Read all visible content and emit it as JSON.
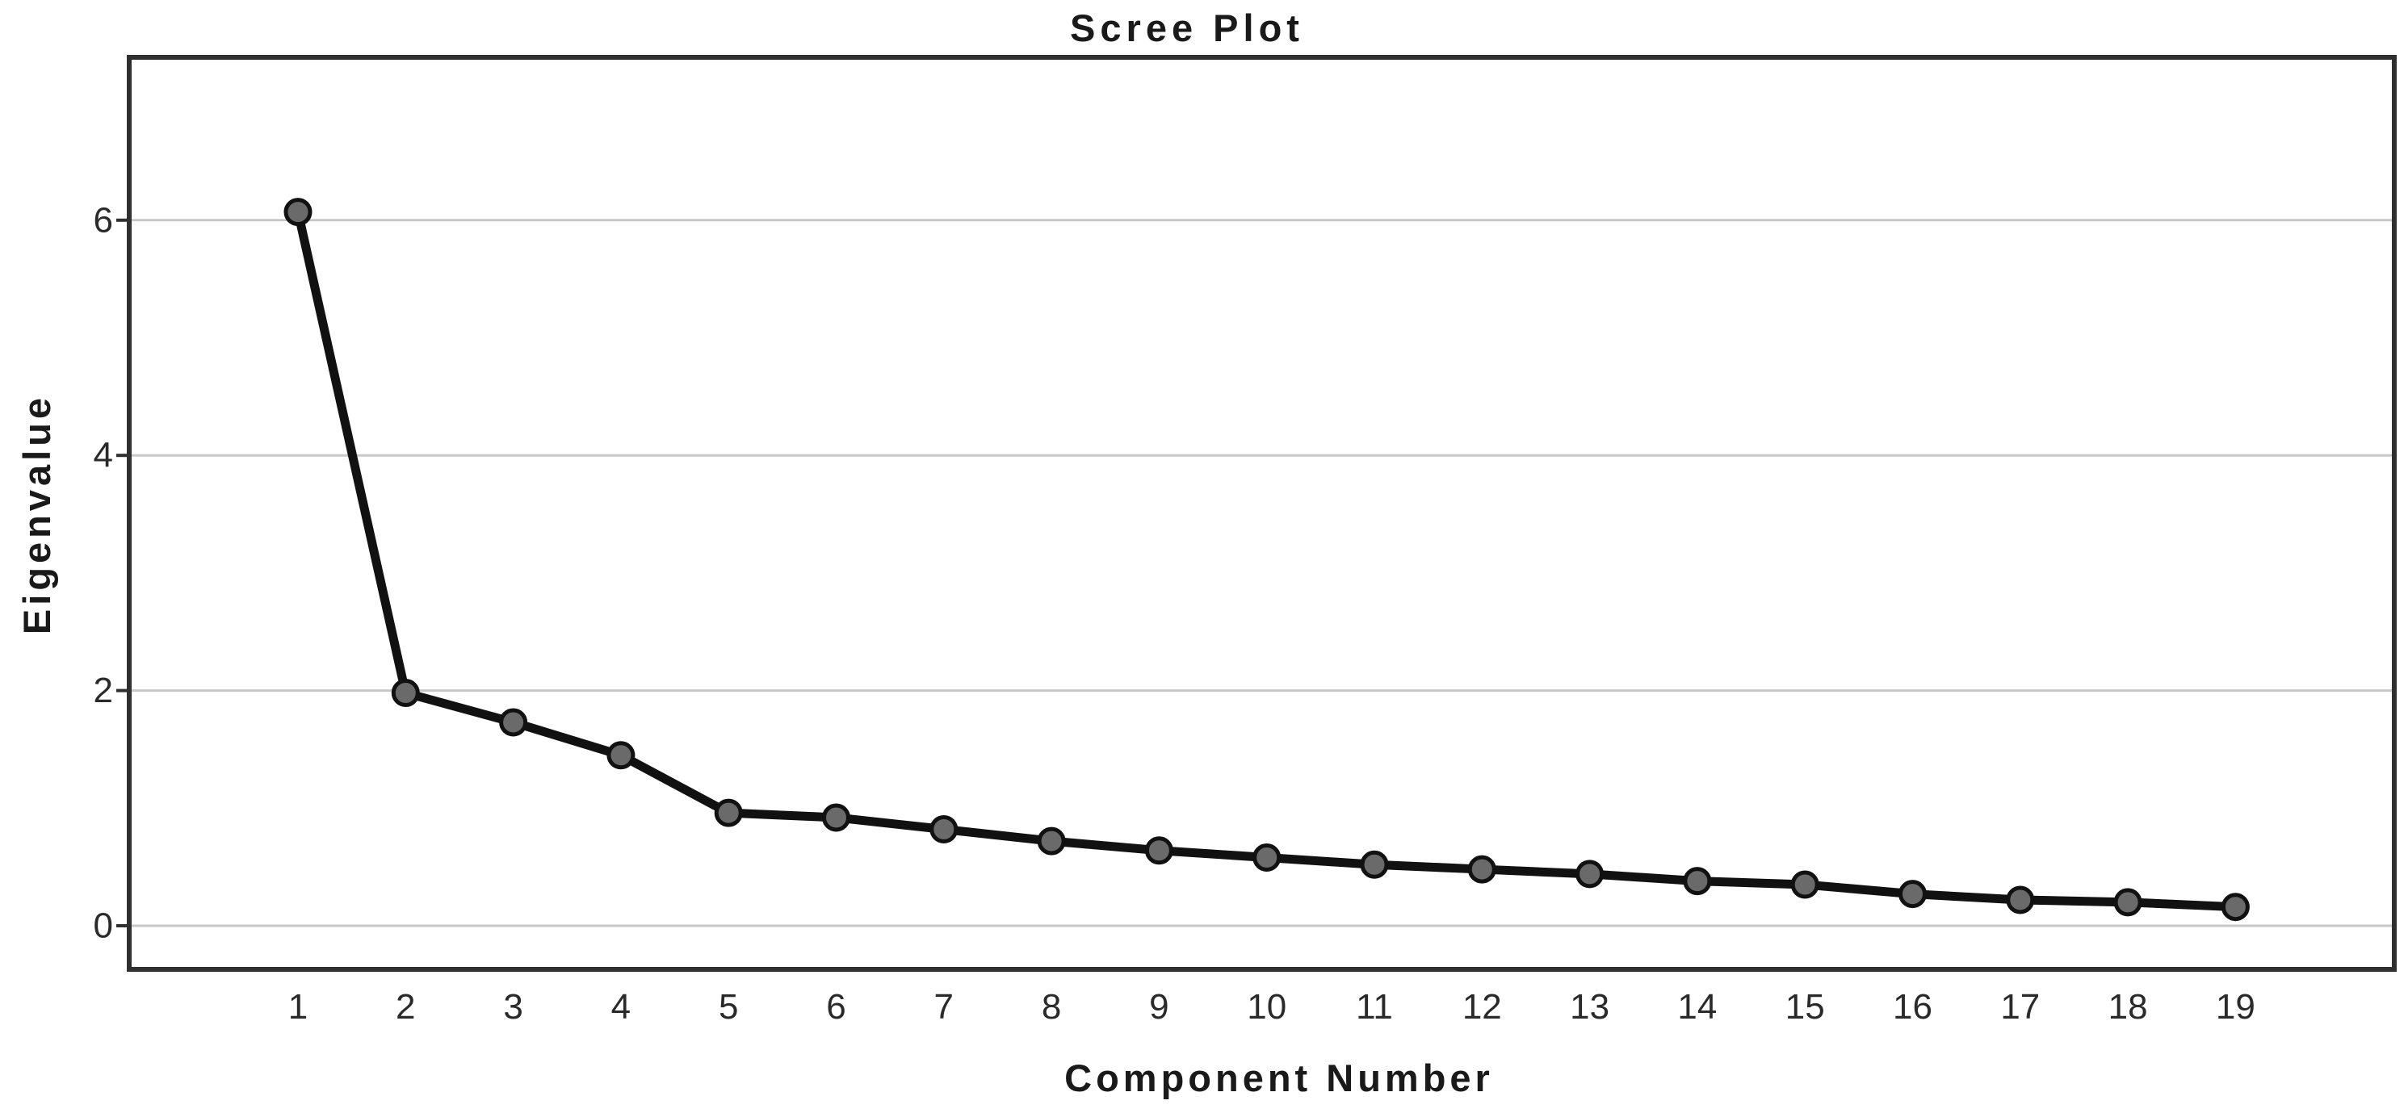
{
  "chart_data": {
    "type": "line",
    "title": "Scree Plot",
    "xlabel": "Component Number",
    "ylabel": "Eigenvalue",
    "categories": [
      1,
      2,
      3,
      4,
      5,
      6,
      7,
      8,
      9,
      10,
      11,
      12,
      13,
      14,
      15,
      16,
      17,
      18,
      19
    ],
    "series": [
      {
        "name": "Eigenvalue",
        "values": [
          6.07,
          1.98,
          1.73,
          1.45,
          0.96,
          0.92,
          0.82,
          0.72,
          0.64,
          0.58,
          0.52,
          0.48,
          0.44,
          0.38,
          0.35,
          0.27,
          0.22,
          0.2,
          0.16
        ]
      }
    ],
    "yticks": [
      0,
      2,
      4,
      6
    ],
    "ylim": [
      -0.38,
      7.38
    ],
    "grid": "horizontal",
    "legend": "none",
    "marker": "circle",
    "style": {
      "line_color": "#111111",
      "marker_fill": "#6a6a6a",
      "marker_edge": "#111111",
      "gridline_color": "#c8c8c8",
      "frame_color": "#2f2f2f",
      "tick_color": "#2f2f2f",
      "text_color": "#2a2a2a",
      "background": "#ffffff"
    }
  }
}
